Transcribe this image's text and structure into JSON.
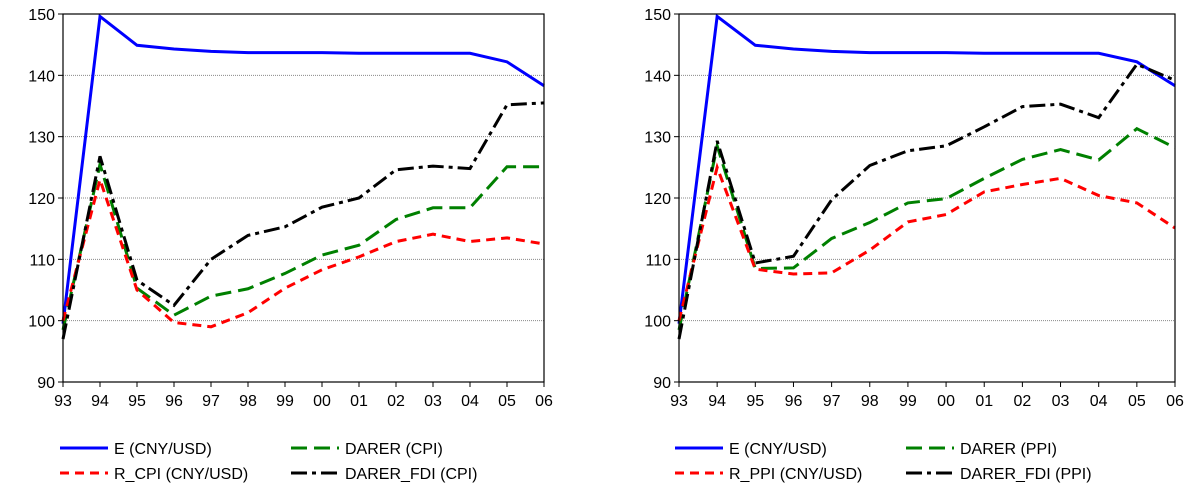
{
  "chart_data": [
    {
      "type": "line",
      "x": [
        "93",
        "94",
        "95",
        "96",
        "97",
        "98",
        "99",
        "00",
        "01",
        "02",
        "03",
        "04",
        "05",
        "06"
      ],
      "ylim": [
        90,
        150
      ],
      "yticks": [
        90,
        100,
        110,
        120,
        130,
        140,
        150
      ],
      "grid": "horizontal dotted",
      "legend_position": "bottom",
      "series": [
        {
          "name": "E (CNY/USD)",
          "color": "#0000ff",
          "dash": "solid",
          "values": [
            99.5,
            149.6,
            144.9,
            144.3,
            143.9,
            143.7,
            143.7,
            143.7,
            143.6,
            143.6,
            143.6,
            143.6,
            142.2,
            138.3
          ]
        },
        {
          "name": "DARER (CPI)",
          "color": "#008000",
          "dash": "long-dash",
          "values": [
            98.5,
            125.5,
            105.3,
            100.9,
            104.0,
            105.2,
            107.7,
            110.7,
            112.3,
            116.5,
            118.4,
            118.4,
            125.1,
            125.1
          ]
        },
        {
          "name": "R_CPI (CNY/USD)",
          "color": "#ff0000",
          "dash": "dash",
          "values": [
            100.0,
            123.0,
            105.0,
            99.7,
            99.0,
            101.3,
            105.3,
            108.3,
            110.4,
            112.9,
            114.1,
            112.9,
            113.5,
            112.5
          ]
        },
        {
          "name": "DARER_FDI (CPI)",
          "color": "#000000",
          "dash": "dash-dot",
          "values": [
            97.0,
            126.8,
            106.6,
            102.5,
            110.0,
            113.9,
            115.3,
            118.5,
            120.0,
            124.6,
            125.2,
            124.8,
            135.2,
            135.5
          ]
        }
      ]
    },
    {
      "type": "line",
      "x": [
        "93",
        "94",
        "95",
        "96",
        "97",
        "98",
        "99",
        "00",
        "01",
        "02",
        "03",
        "04",
        "05",
        "06"
      ],
      "ylim": [
        90,
        150
      ],
      "yticks": [
        90,
        100,
        110,
        120,
        130,
        140,
        150
      ],
      "grid": "horizontal dotted",
      "legend_position": "bottom",
      "series": [
        {
          "name": "E (CNY/USD)",
          "color": "#0000ff",
          "dash": "solid",
          "values": [
            99.5,
            149.6,
            144.9,
            144.3,
            143.9,
            143.7,
            143.7,
            143.7,
            143.6,
            143.6,
            143.6,
            143.6,
            142.2,
            138.3
          ]
        },
        {
          "name": "DARER (PPI)",
          "color": "#008000",
          "dash": "long-dash",
          "values": [
            98.5,
            128.5,
            108.5,
            108.6,
            113.4,
            116.0,
            119.2,
            119.9,
            123.2,
            126.3,
            127.9,
            126.2,
            131.3,
            128.2
          ]
        },
        {
          "name": "R_PPI (CNY/USD)",
          "color": "#ff0000",
          "dash": "dash",
          "values": [
            100.0,
            125.0,
            108.4,
            107.6,
            107.8,
            111.5,
            116.1,
            117.3,
            121.0,
            122.2,
            123.2,
            120.4,
            119.2,
            115.1
          ]
        },
        {
          "name": "DARER_FDI (PPI)",
          "color": "#000000",
          "dash": "dash-dot",
          "values": [
            97.0,
            129.3,
            109.4,
            110.5,
            119.7,
            125.3,
            127.7,
            128.5,
            131.6,
            134.9,
            135.3,
            133.1,
            141.8,
            139.2
          ]
        }
      ]
    }
  ]
}
